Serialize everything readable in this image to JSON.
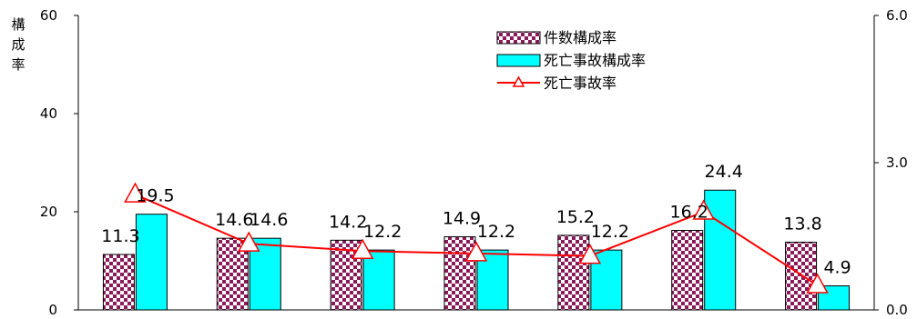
{
  "chart_data": {
    "type": "bar",
    "categories": [
      "",
      "",
      "",
      "",
      "",
      "",
      ""
    ],
    "series": [
      {
        "name": "件数構成率",
        "axis": "left",
        "values": [
          11.3,
          14.6,
          14.2,
          14.9,
          15.2,
          16.2,
          13.8
        ]
      },
      {
        "name": "死亡事故構成率",
        "axis": "left",
        "values": [
          19.5,
          14.6,
          12.2,
          12.2,
          12.2,
          24.4,
          4.9
        ]
      },
      {
        "name": "死亡事故率",
        "axis": "right",
        "type": "line",
        "values": [
          2.35,
          1.35,
          1.2,
          1.15,
          1.1,
          2.0,
          0.5
        ]
      }
    ],
    "ylabel": "構成率",
    "ylim": [
      0,
      60
    ],
    "yticks": [
      "0",
      "20",
      "40",
      "60"
    ],
    "y2lim": [
      0,
      6
    ],
    "y2ticks": [
      "0.0",
      "3.0",
      "6.0"
    ],
    "grid": false,
    "legend": "top-center"
  },
  "colors": {
    "bar1": "#8b1a5a",
    "bar1_light": "#ffffff",
    "bar2": "#00ffff",
    "line": "#ff0000"
  }
}
